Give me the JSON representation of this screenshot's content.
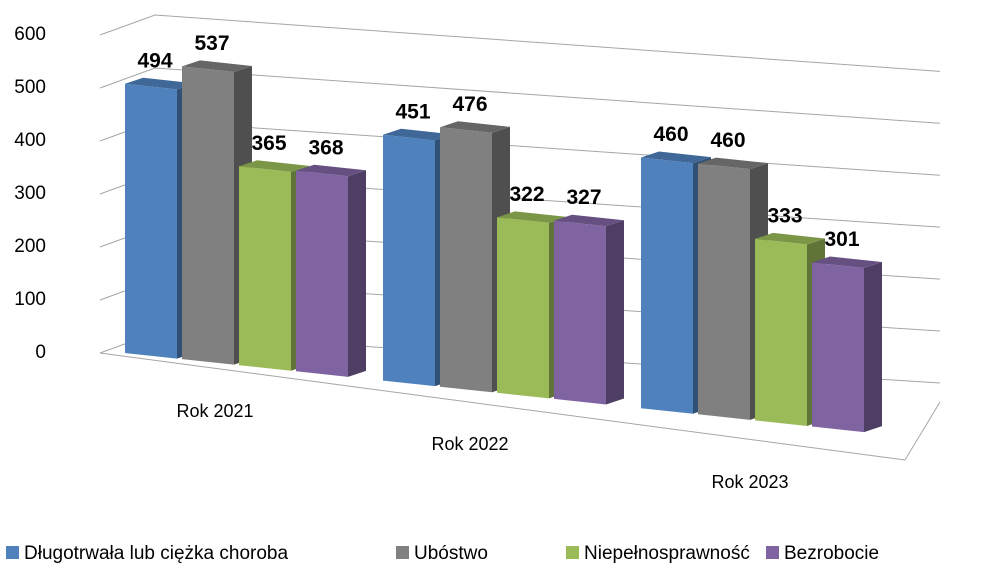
{
  "chart_data": {
    "type": "bar3d",
    "categories": [
      "Rok 2021",
      "Rok 2022",
      "Rok 2023"
    ],
    "series": [
      {
        "name": "Długotrwała lub ciężka choroba",
        "color": "#4f81bd",
        "values": [
          494,
          451,
          460
        ]
      },
      {
        "name": "Ubóstwo",
        "color": "#808080",
        "values": [
          537,
          476,
          460
        ]
      },
      {
        "name": "Niepełnosprawność",
        "color": "#9bbb59",
        "values": [
          365,
          322,
          333
        ]
      },
      {
        "name": "Bezrobocie",
        "color": "#8064a2",
        "values": [
          368,
          327,
          301
        ]
      }
    ],
    "ylim": [
      0,
      600
    ],
    "yticks": [
      0,
      100,
      200,
      300,
      400,
      500,
      600
    ],
    "grid": true,
    "legend": "bottom"
  }
}
